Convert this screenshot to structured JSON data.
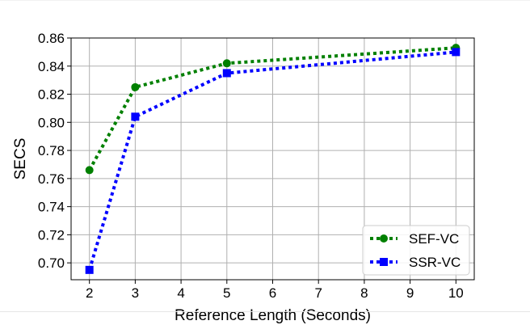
{
  "chart_data": {
    "type": "line",
    "title": "",
    "xlabel": "Reference Length (Seconds)",
    "ylabel": "SECS",
    "x": [
      2,
      3,
      5,
      10
    ],
    "xlim": [
      1.6,
      10.4
    ],
    "ylim": [
      0.688,
      0.86
    ],
    "xticks": [
      2,
      3,
      4,
      5,
      6,
      7,
      8,
      9,
      10
    ],
    "yticks": [
      0.7,
      0.72,
      0.74,
      0.76,
      0.78,
      0.8,
      0.82,
      0.84,
      0.86
    ],
    "grid": true,
    "legend_position": "bottom-right",
    "series": [
      {
        "name": "SEF-VC",
        "values": [
          0.766,
          0.825,
          0.842,
          0.853
        ],
        "color": "#008000",
        "marker": "circle",
        "linestyle": "dotted"
      },
      {
        "name": "SSR-VC",
        "values": [
          0.695,
          0.804,
          0.835,
          0.85
        ],
        "color": "#0000ff",
        "marker": "square",
        "linestyle": "dotted"
      }
    ]
  }
}
